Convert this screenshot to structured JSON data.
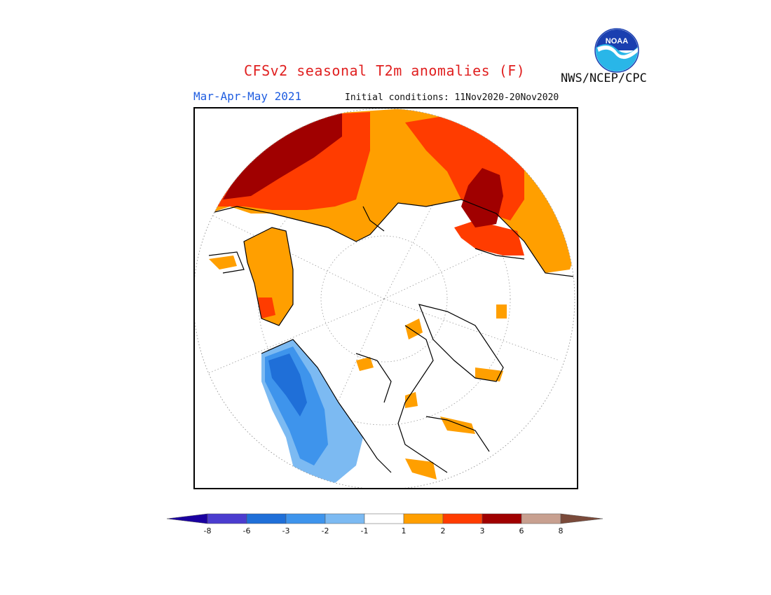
{
  "title": "CFSv2 seasonal T2m anomalies (F)",
  "period": "Mar-Apr-May 2021",
  "initial_conditions": "Initial conditions: 11Nov2020-20Nov2020",
  "agency": "NWS/NCEP/CPC",
  "logo_text": "NOAA",
  "colors": {
    "title": "#e02020",
    "period": "#1f5de0",
    "land_outline": "#000000"
  },
  "legend": {
    "bins": [
      {
        "color": "#1a00a0"
      },
      {
        "color": "#4b3ccf"
      },
      {
        "color": "#1f6fd8"
      },
      {
        "color": "#3e94ec"
      },
      {
        "color": "#7cbaf2"
      },
      {
        "color": "#ffffff"
      },
      {
        "color": "#ff9f00"
      },
      {
        "color": "#ff3c00"
      },
      {
        "color": "#a00000"
      },
      {
        "color": "#c8a090"
      },
      {
        "color": "#7a4a3a"
      }
    ],
    "ticks": [
      "-8",
      "-6",
      "-3",
      "-2",
      "-1",
      "1",
      "2",
      "3",
      "6",
      "8"
    ]
  },
  "map_regions": [
    {
      "name": "eurasia-north-warm",
      "level": "1 to 2",
      "color": "#ff9f00"
    },
    {
      "name": "eurasia-warm",
      "level": "2 to 3",
      "color": "#ff3c00"
    },
    {
      "name": "asia-strong-warm",
      "level": "3 to 6",
      "color": "#a00000"
    },
    {
      "name": "greenland-warm",
      "level": "1 to 2",
      "color": "#ff9f00"
    },
    {
      "name": "western-canada-cold",
      "level": "-3 to -1",
      "color": "#3e94ec"
    }
  ]
}
